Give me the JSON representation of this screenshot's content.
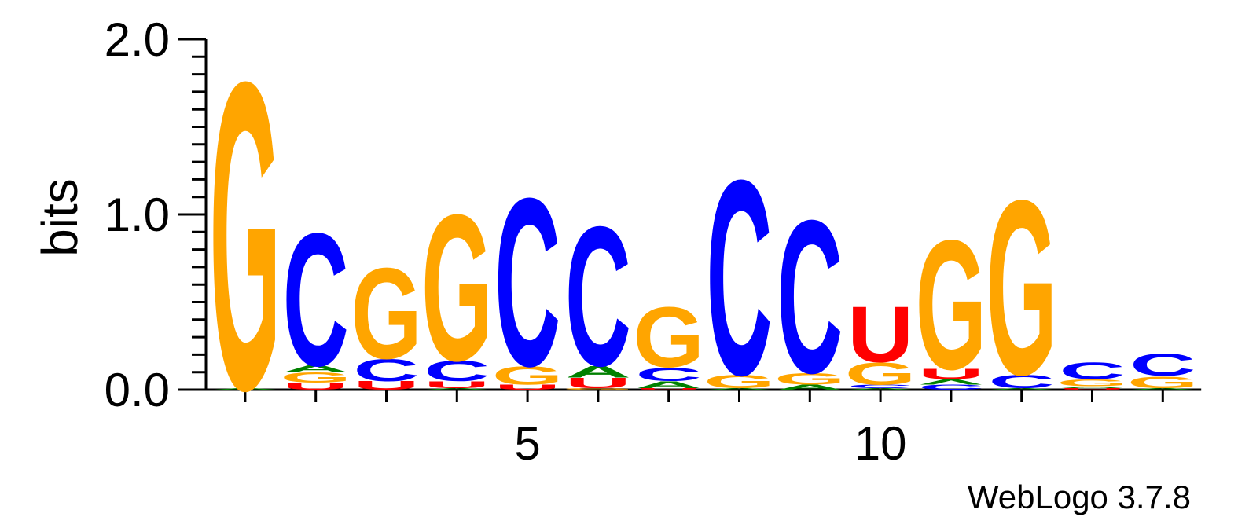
{
  "chart_data": {
    "type": "sequence-logo",
    "ylabel": "bits",
    "ylim": [
      0,
      2.0
    ],
    "y_ticks": [
      "0.0",
      "1.0",
      "2.0"
    ],
    "x_tick_positions": [
      1,
      2,
      3,
      4,
      5,
      6,
      7,
      8,
      9,
      10,
      11,
      12,
      13,
      14
    ],
    "x_tick_labels": [
      {
        "position": 5,
        "label": "5"
      },
      {
        "position": 10,
        "label": "10"
      }
    ],
    "colors": {
      "A": "#008000",
      "C": "#0000ff",
      "G": "#ffa500",
      "U": "#ff0000"
    },
    "positions": [
      {
        "pos": 1,
        "stack": [
          [
            "A",
            0.01
          ],
          [
            "G",
            1.83
          ]
        ]
      },
      {
        "pos": 2,
        "stack": [
          [
            "U",
            0.04
          ],
          [
            "G",
            0.06
          ],
          [
            "A",
            0.04
          ],
          [
            "C",
            0.79
          ]
        ]
      },
      {
        "pos": 3,
        "stack": [
          [
            "U",
            0.05
          ],
          [
            "C",
            0.13
          ],
          [
            "G",
            0.54
          ]
        ]
      },
      {
        "pos": 4,
        "stack": [
          [
            "A",
            0.01
          ],
          [
            "U",
            0.04
          ],
          [
            "C",
            0.12
          ],
          [
            "G",
            0.87
          ]
        ]
      },
      {
        "pos": 5,
        "stack": [
          [
            "U",
            0.03
          ],
          [
            "G",
            0.11
          ],
          [
            "C",
            1.0
          ]
        ]
      },
      {
        "pos": 6,
        "stack": [
          [
            "G",
            0.01
          ],
          [
            "U",
            0.06
          ],
          [
            "A",
            0.07
          ],
          [
            "C",
            0.83
          ]
        ]
      },
      {
        "pos": 7,
        "stack": [
          [
            "U",
            0.01
          ],
          [
            "A",
            0.04
          ],
          [
            "C",
            0.08
          ],
          [
            "G",
            0.36
          ]
        ]
      },
      {
        "pos": 8,
        "stack": [
          [
            "A",
            0.01
          ],
          [
            "G",
            0.08
          ],
          [
            "C",
            1.16
          ]
        ]
      },
      {
        "pos": 9,
        "stack": [
          [
            "A",
            0.03
          ],
          [
            "G",
            0.07
          ],
          [
            "C",
            0.91
          ]
        ]
      },
      {
        "pos": 10,
        "stack": [
          [
            "A",
            0.01
          ],
          [
            "C",
            0.02
          ],
          [
            "G",
            0.13
          ],
          [
            "U",
            0.33
          ]
        ]
      },
      {
        "pos": 11,
        "stack": [
          [
            "C",
            0.03
          ],
          [
            "A",
            0.03
          ],
          [
            "U",
            0.06
          ],
          [
            "G",
            0.77
          ]
        ]
      },
      {
        "pos": 12,
        "stack": [
          [
            "A",
            0.01
          ],
          [
            "C",
            0.08
          ],
          [
            "G",
            1.04
          ]
        ]
      },
      {
        "pos": 13,
        "stack": [
          [
            "U",
            0.01
          ],
          [
            "A",
            0.01
          ],
          [
            "G",
            0.04
          ],
          [
            "C",
            0.1
          ]
        ]
      },
      {
        "pos": 14,
        "stack": [
          [
            "A",
            0.01
          ],
          [
            "G",
            0.07
          ],
          [
            "C",
            0.13
          ]
        ]
      }
    ]
  },
  "credit": "WebLogo 3.7.8"
}
